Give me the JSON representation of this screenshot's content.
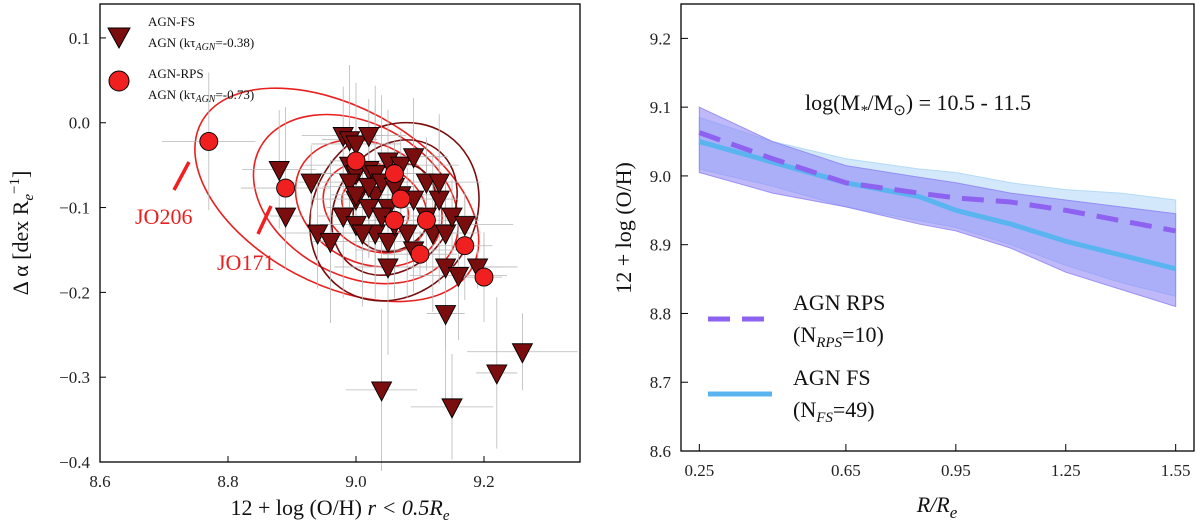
{
  "chart_data": [
    {
      "type": "scatter",
      "xlabel": "12 + log (O/H) ",
      "xlabel_math": "r < 0.5R",
      "xlabel_sub": "e",
      "ylabel": "Δ α [dex R",
      "ylabel_sub": "e",
      "ylabel_sup": "−1",
      "ylabel_end": "]",
      "xlim": [
        8.6,
        9.35
      ],
      "ylim": [
        -0.4,
        0.14
      ],
      "xticks": [
        8.6,
        8.8,
        9.0,
        9.2
      ],
      "xtick_labels": [
        "8.6",
        "8.8",
        "9.0",
        "9.2"
      ],
      "yticks": [
        -0.4,
        -0.3,
        -0.2,
        -0.1,
        0.0,
        0.1
      ],
      "ytick_labels": [
        "−0.4",
        "−0.3",
        "−0.2",
        "−0.1",
        "0.0",
        "0.1"
      ],
      "colors": {
        "fs": "#7a0d0d",
        "rps": "#f02020",
        "contour_rps": "#e82020",
        "contour_fs": "#7a0d0d"
      },
      "legend": [
        {
          "name": "AGN-FS",
          "detail": "AGN (kτ",
          "sub": "AGN",
          "val": "=-0.38)"
        },
        {
          "name": "AGN-RPS",
          "detail": "AGN (kτ",
          "sub": "AGN",
          "val": "=-0.73)"
        }
      ],
      "annotations": [
        {
          "text": "JO206",
          "x": 8.77,
          "y": -0.022
        },
        {
          "text": "JO171",
          "x": 8.89,
          "y": -0.077
        }
      ],
      "series": [
        {
          "name": "AGN-FS",
          "marker": "triangle-down",
          "points": [
            [
              8.88,
              -0.055
            ],
            [
              8.93,
              -0.07
            ],
            [
              8.94,
              -0.13
            ],
            [
              8.96,
              -0.14
            ],
            [
              8.98,
              -0.015
            ],
            [
              8.99,
              -0.02
            ],
            [
              9.0,
              -0.025
            ],
            [
              9.02,
              -0.015
            ],
            [
              8.99,
              -0.05
            ],
            [
              9.0,
              -0.06
            ],
            [
              9.02,
              -0.055
            ],
            [
              9.03,
              -0.06
            ],
            [
              9.05,
              -0.045
            ],
            [
              9.07,
              -0.05
            ],
            [
              9.09,
              -0.04
            ],
            [
              9.0,
              -0.09
            ],
            [
              9.03,
              -0.085
            ],
            [
              9.05,
              -0.1
            ],
            [
              9.07,
              -0.085
            ],
            [
              9.09,
              -0.09
            ],
            [
              9.11,
              -0.07
            ],
            [
              9.13,
              -0.09
            ],
            [
              8.98,
              -0.11
            ],
            [
              9.0,
              -0.12
            ],
            [
              9.02,
              -0.1
            ],
            [
              9.03,
              -0.13
            ],
            [
              9.04,
              -0.11
            ],
            [
              9.05,
              -0.14
            ],
            [
              9.06,
              -0.12
            ],
            [
              9.08,
              -0.13
            ],
            [
              9.09,
              -0.15
            ],
            [
              9.11,
              -0.11
            ],
            [
              9.12,
              -0.13
            ],
            [
              9.14,
              -0.13
            ],
            [
              9.15,
              -0.11
            ],
            [
              9.17,
              -0.12
            ],
            [
              9.01,
              -0.13
            ],
            [
              9.05,
              -0.17
            ],
            [
              9.14,
              -0.17
            ],
            [
              9.16,
              -0.18
            ],
            [
              9.19,
              -0.17
            ],
            [
              8.99,
              -0.07
            ],
            [
              9.0,
              -0.085
            ],
            [
              9.02,
              -0.075
            ],
            [
              9.04,
              -0.07
            ],
            [
              9.06,
              -0.075
            ],
            [
              9.13,
              -0.07
            ],
            [
              9.14,
              -0.225
            ],
            [
              9.04,
              -0.315
            ],
            [
              9.15,
              -0.335
            ],
            [
              9.22,
              -0.295
            ],
            [
              9.26,
              -0.27
            ],
            [
              8.89,
              -0.11
            ]
          ]
        },
        {
          "name": "AGN-RPS",
          "marker": "circle",
          "points": [
            [
              8.77,
              -0.022
            ],
            [
              8.89,
              -0.077
            ],
            [
              9.0,
              -0.045
            ],
            [
              9.06,
              -0.06
            ],
            [
              9.07,
              -0.09
            ],
            [
              9.06,
              -0.115
            ],
            [
              9.11,
              -0.115
            ],
            [
              9.1,
              -0.155
            ],
            [
              9.17,
              -0.145
            ],
            [
              9.2,
              -0.182
            ]
          ]
        }
      ]
    },
    {
      "type": "line",
      "title": "log(M",
      "title_sub": "*",
      "title_mid": "/M",
      "title_sub2": "⊙",
      "title_end": ") = 10.5 - 11.5",
      "xlabel": "R/R",
      "xlabel_sub": "e",
      "ylabel": "12 + log (O/H)",
      "xlim": [
        0.2,
        1.6
      ],
      "ylim": [
        8.6,
        9.25
      ],
      "x": [
        0.25,
        0.45,
        0.65,
        0.85,
        0.95,
        1.1,
        1.25,
        1.4,
        1.55
      ],
      "xticks": [
        0.25,
        0.65,
        0.95,
        1.25,
        1.55
      ],
      "xtick_labels": [
        "0.25",
        "0.65",
        "0.95",
        "1.25",
        "1.55"
      ],
      "yticks": [
        8.6,
        8.7,
        8.8,
        8.9,
        9.0,
        9.1,
        9.2
      ],
      "ytick_labels": [
        "8.6",
        "8.7",
        "8.8",
        "8.9",
        "9.0",
        "9.1",
        "9.2"
      ],
      "colors": {
        "rps": "#8e62f0",
        "fs": "#5ab4f0",
        "band_rps": "#8a7ff5",
        "band_fs": "#a8d4f8"
      },
      "series": [
        {
          "name": "AGN RPS",
          "count_label": "(N",
          "count_sub": "RPS",
          "count_val": "=10)",
          "style": "dashed",
          "values": [
            9.063,
            9.025,
            8.99,
            8.975,
            8.968,
            8.962,
            8.95,
            8.935,
            8.92
          ],
          "upper": [
            9.1,
            9.05,
            9.015,
            8.998,
            8.99,
            8.975,
            8.965,
            8.955,
            8.945
          ],
          "lower": [
            9.005,
            8.975,
            8.955,
            8.93,
            8.92,
            8.895,
            8.86,
            8.835,
            8.81
          ]
        },
        {
          "name": "AGN FS",
          "count_label": "(N",
          "count_sub": "FS",
          "count_val": "=49)",
          "style": "solid",
          "values": [
            9.05,
            9.02,
            8.99,
            8.97,
            8.95,
            8.93,
            8.905,
            8.885,
            8.865
          ],
          "upper": [
            9.085,
            9.05,
            9.025,
            9.01,
            9.005,
            8.99,
            8.98,
            8.975,
            8.965
          ],
          "lower": [
            9.01,
            8.985,
            8.955,
            8.935,
            8.925,
            8.9,
            8.87,
            8.845,
            8.825
          ]
        }
      ]
    }
  ]
}
